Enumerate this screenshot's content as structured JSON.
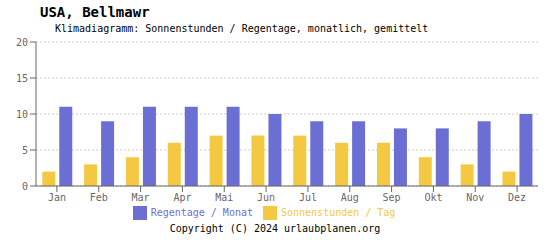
{
  "chart_data": {
    "type": "bar",
    "title": "USA,  Bellmawr",
    "subtitle": "Klimadiagramm: Sonnenstunden / Regentage, monatlich, gemittelt",
    "annotations": [
      "Copyright (C) 2024 urlaubplanen.org"
    ],
    "categories": [
      "Jan",
      "Feb",
      "Mar",
      "Apr",
      "Mai",
      "Jun",
      "Jul",
      "Aug",
      "Sep",
      "Okt",
      "Nov",
      "Dez"
    ],
    "series": [
      {
        "name": "Sonnenstunden / Tag",
        "color": "#F5C842",
        "values": [
          2,
          3,
          4,
          6,
          7,
          7,
          7,
          6,
          6,
          4,
          3,
          2
        ]
      },
      {
        "name": "Regentage / Monat",
        "color": "#6B6FD4",
        "values": [
          11,
          9,
          11,
          11,
          11,
          10,
          9,
          9,
          8,
          8,
          9,
          10
        ]
      }
    ],
    "ylim": [
      0,
      20
    ],
    "yticks": [
      0,
      5,
      10,
      15,
      20
    ],
    "grid": true,
    "legend": "bottom"
  }
}
